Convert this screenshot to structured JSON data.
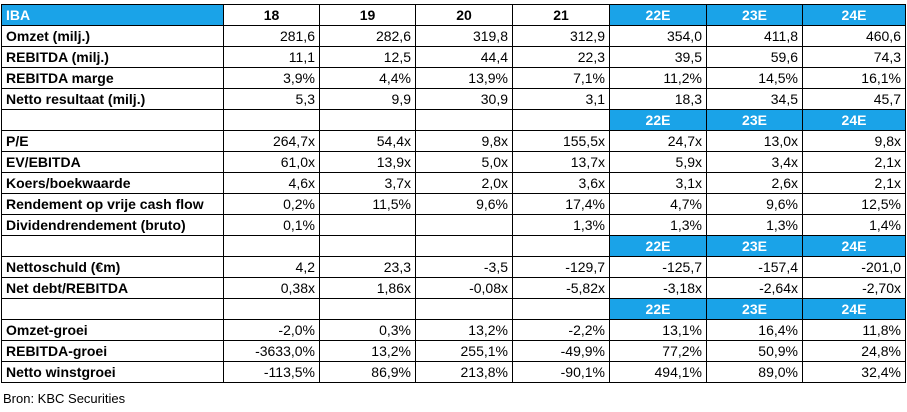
{
  "table": {
    "corner": "IBA",
    "years": [
      "18",
      "19",
      "20",
      "21"
    ],
    "estimates": [
      "22E",
      "23E",
      "24E"
    ],
    "sections": [
      {
        "rows": [
          {
            "label": "Omzet (milj.)",
            "values": [
              "281,6",
              "282,6",
              "319,8",
              "312,9",
              "354,0",
              "411,8",
              "460,6"
            ]
          },
          {
            "label": "REBITDA (milj.)",
            "values": [
              "11,1",
              "12,5",
              "44,4",
              "22,3",
              "39,5",
              "59,6",
              "74,3"
            ]
          },
          {
            "label": "REBITDA marge",
            "values": [
              "3,9%",
              "4,4%",
              "13,9%",
              "7,1%",
              "11,2%",
              "14,5%",
              "16,1%"
            ]
          },
          {
            "label": "Netto resultaat (milj.)",
            "values": [
              "5,3",
              "9,9",
              "30,9",
              "3,1",
              "18,3",
              "34,5",
              "45,7"
            ]
          }
        ]
      },
      {
        "rows": [
          {
            "label": "P/E",
            "values": [
              "264,7x",
              "54,4x",
              "9,8x",
              "155,5x",
              "24,7x",
              "13,0x",
              "9,8x"
            ]
          },
          {
            "label": "EV/EBITDA",
            "values": [
              "61,0x",
              "13,9x",
              "5,0x",
              "13,7x",
              "5,9x",
              "3,4x",
              "2,1x"
            ]
          },
          {
            "label": "Koers/boekwaarde",
            "values": [
              "4,6x",
              "3,7x",
              "2,0x",
              "3,6x",
              "3,1x",
              "2,6x",
              "2,1x"
            ]
          },
          {
            "label": "Rendement op vrije cash flow",
            "values": [
              "0,2%",
              "11,5%",
              "9,6%",
              "17,4%",
              "4,7%",
              "9,6%",
              "12,5%"
            ]
          },
          {
            "label": "Dividendrendement (bruto)",
            "values": [
              "0,1%",
              "",
              "",
              "1,3%",
              "1,3%",
              "1,3%",
              "1,4%"
            ]
          }
        ]
      },
      {
        "rows": [
          {
            "label": "Nettoschuld (€m)",
            "values": [
              "4,2",
              "23,3",
              "-3,5",
              "-129,7",
              "-125,7",
              "-157,4",
              "-201,0"
            ]
          },
          {
            "label": "Net debt/REBITDA",
            "values": [
              "0,38x",
              "1,86x",
              "-0,08x",
              "-5,82x",
              "-3,18x",
              "-2,64x",
              "-2,70x"
            ]
          }
        ]
      },
      {
        "rows": [
          {
            "label": "Omzet-groei",
            "values": [
              "-2,0%",
              "0,3%",
              "13,2%",
              "-2,2%",
              "13,1%",
              "16,4%",
              "11,8%"
            ]
          },
          {
            "label": "REBITDA-groei",
            "values": [
              "-3633,0%",
              "13,2%",
              "255,1%",
              "-49,9%",
              "77,2%",
              "50,9%",
              "24,8%"
            ]
          },
          {
            "label": "Netto winstgroei",
            "values": [
              "-113,5%",
              "86,9%",
              "213,8%",
              "-90,1%",
              "494,1%",
              "89,0%",
              "32,4%"
            ]
          }
        ]
      }
    ]
  },
  "source": "Bron: KBC Securities",
  "colors": {
    "accent": "#1aa3e8",
    "accent_text": "#ffffff"
  }
}
